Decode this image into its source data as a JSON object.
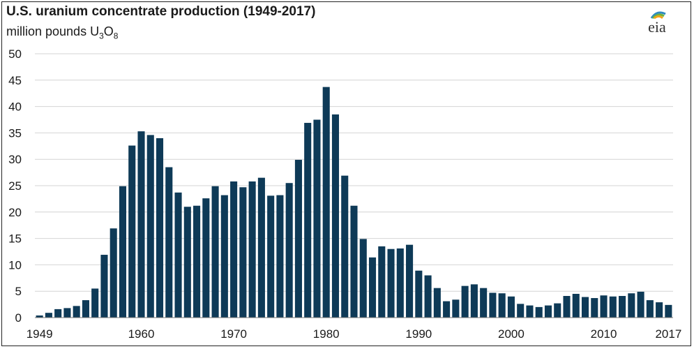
{
  "title": "U.S. uranium concentrate production (1949-2017)",
  "subtitle_prefix": "million pounds U",
  "subtitle_sub1": "3",
  "subtitle_mid": "O",
  "subtitle_sub2": "8",
  "logo_text": "eia",
  "colors": {
    "bar": "#0e3a57",
    "grid": "#d4d4d4",
    "axis": "#777777"
  },
  "chart_data": {
    "type": "bar",
    "title": "U.S. uranium concentrate production (1949-2017)",
    "ylabel": "million pounds U3O8",
    "xlabel": "",
    "ylim": [
      0,
      50
    ],
    "yticks": [
      0,
      5,
      10,
      15,
      20,
      25,
      30,
      35,
      40,
      45,
      50
    ],
    "xtick_labels": [
      "1949",
      "1960",
      "1970",
      "1980",
      "1990",
      "2000",
      "2010",
      "2017"
    ],
    "grid": true,
    "categories": [
      1949,
      1950,
      1951,
      1952,
      1953,
      1954,
      1955,
      1956,
      1957,
      1958,
      1959,
      1960,
      1961,
      1962,
      1963,
      1964,
      1965,
      1966,
      1967,
      1968,
      1969,
      1970,
      1971,
      1972,
      1973,
      1974,
      1975,
      1976,
      1977,
      1978,
      1979,
      1980,
      1981,
      1982,
      1983,
      1984,
      1985,
      1986,
      1987,
      1988,
      1989,
      1990,
      1991,
      1992,
      1993,
      1994,
      1995,
      1996,
      1997,
      1998,
      1999,
      2000,
      2001,
      2002,
      2003,
      2004,
      2005,
      2006,
      2007,
      2008,
      2009,
      2010,
      2011,
      2012,
      2013,
      2014,
      2015,
      2016,
      2017
    ],
    "values": [
      0.4,
      0.9,
      1.6,
      1.8,
      2.2,
      3.3,
      5.5,
      11.9,
      16.9,
      24.9,
      32.6,
      35.3,
      34.6,
      34.0,
      28.5,
      23.7,
      21.0,
      21.2,
      22.6,
      24.9,
      23.2,
      25.8,
      24.7,
      25.8,
      26.5,
      23.1,
      23.2,
      25.5,
      29.9,
      36.9,
      37.5,
      43.7,
      38.5,
      26.9,
      21.2,
      14.9,
      11.4,
      13.5,
      13.0,
      13.1,
      13.8,
      8.9,
      8.0,
      5.6,
      3.1,
      3.4,
      6.0,
      6.3,
      5.6,
      4.7,
      4.6,
      4.0,
      2.6,
      2.3,
      2.0,
      2.3,
      2.7,
      4.1,
      4.5,
      3.9,
      3.7,
      4.2,
      4.0,
      4.1,
      4.6,
      4.9,
      3.3,
      2.9,
      2.4
    ]
  }
}
